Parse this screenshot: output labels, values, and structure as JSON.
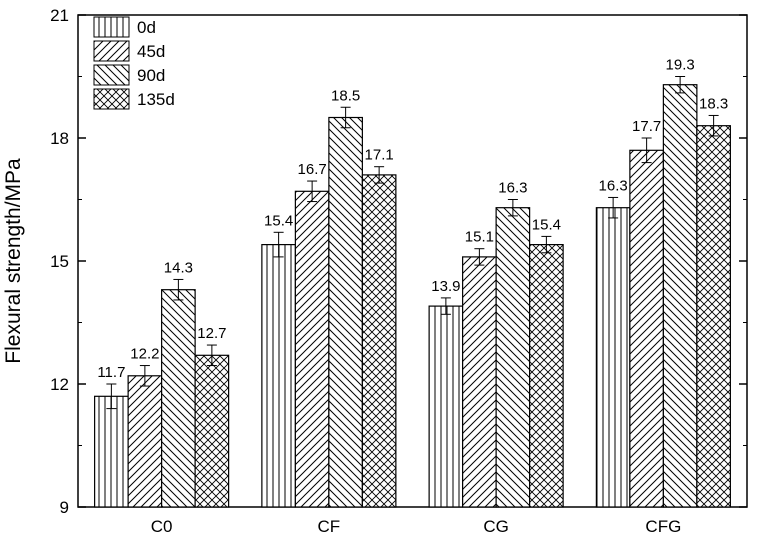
{
  "chart_data": {
    "type": "bar",
    "title": "",
    "xlabel": "",
    "ylabel": "Flexural strength/MPa",
    "ylim": [
      9,
      21
    ],
    "yticks": [
      "9",
      "12",
      "15",
      "18",
      "21"
    ],
    "categories": [
      "C0",
      "CF",
      "CG",
      "CFG"
    ],
    "series": [
      {
        "name": "0d",
        "pattern": "vertical-lines",
        "values": [
          11.7,
          15.4,
          13.9,
          16.3
        ],
        "errors": [
          0.3,
          0.3,
          0.2,
          0.25
        ]
      },
      {
        "name": "45d",
        "pattern": "forward-diagonal",
        "values": [
          12.2,
          16.7,
          15.1,
          17.7
        ],
        "errors": [
          0.25,
          0.25,
          0.2,
          0.3
        ]
      },
      {
        "name": "90d",
        "pattern": "back-diagonal",
        "values": [
          14.3,
          18.5,
          16.3,
          19.3
        ],
        "errors": [
          0.25,
          0.25,
          0.2,
          0.2
        ]
      },
      {
        "name": "135d",
        "pattern": "crosshatch",
        "values": [
          12.7,
          17.1,
          15.4,
          18.3
        ],
        "errors": [
          0.25,
          0.2,
          0.2,
          0.25
        ]
      }
    ],
    "data_labels": [
      [
        "11.7",
        "15.4",
        "13.9",
        "16.3"
      ],
      [
        "12.2",
        "16.7",
        "15.1",
        "17.7"
      ],
      [
        "14.3",
        "18.5",
        "16.3",
        "19.3"
      ],
      [
        "12.7",
        "17.1",
        "15.4",
        "18.3"
      ]
    ],
    "legend": {
      "position": "top-left"
    },
    "grid": false,
    "bar_color": "#ffffff",
    "stroke_color": "#000000"
  }
}
